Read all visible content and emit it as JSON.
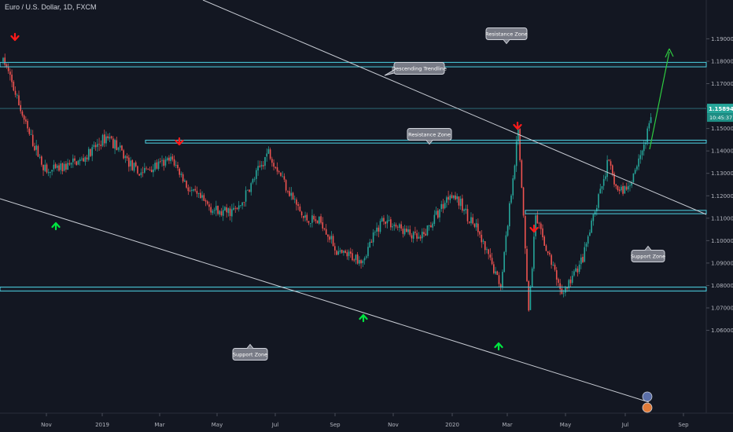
{
  "header": {
    "title": "Euro / U.S. Dollar, 1D, FXCM"
  },
  "colors": {
    "background": "#131722",
    "up": "#26a69a",
    "down": "#ef5350",
    "zone": "#4dd0e1",
    "trendline": "#c8ccd4",
    "axis_text": "#b2b5be",
    "price_badge": "#26a69a",
    "arrow_down": "#ff1a1a",
    "arrow_up": "#00e640",
    "projection": "#2ecc40",
    "callout_bg": "#787b86",
    "callout_border": "#d1d4dc"
  },
  "price_axis": {
    "ticks": [
      "1.19000",
      "1.18000",
      "1.17000",
      "1.16000",
      "1.15000",
      "1.14000",
      "1.13000",
      "1.12000",
      "1.11000",
      "1.10000",
      "1.09000",
      "1.08000",
      "1.07000",
      "1.06000"
    ],
    "current_price": "1.15894",
    "countdown": "10:45:37"
  },
  "time_axis": {
    "ticks": [
      "Nov",
      "2019",
      "Mar",
      "May",
      "Jul",
      "Sep",
      "Nov",
      "2020",
      "Mar",
      "May",
      "Jul",
      "Sep"
    ]
  },
  "callouts": {
    "resistance_top": "Resistance Zone",
    "descending_trendline": "Descending Trendline",
    "resistance_mid": "Resistance Zone",
    "support_mid": "Support Zone",
    "support_bottom": "Support Zone"
  },
  "chart_data": {
    "type": "candlestick",
    "title": "Euro / U.S. Dollar, 1D, FXCM",
    "y_range": [
      1.055,
      1.197
    ],
    "zones": [
      {
        "label": "Resistance Zone",
        "low": 1.1775,
        "high": 1.1795
      },
      {
        "label": "Resistance Zone",
        "low": 1.1435,
        "high": 1.1448
      },
      {
        "label": "Support Zone",
        "low": 1.112,
        "high": 1.1135
      },
      {
        "label": "Support Zone",
        "low": 1.0775,
        "high": 1.0793
      }
    ],
    "last_price": 1.15894,
    "path_dates": [
      "2018-09-25",
      "2018-10-20",
      "2018-11-08",
      "2018-12-15",
      "2019-01-10",
      "2019-02-10",
      "2019-03-18",
      "2019-04-05",
      "2019-05-05",
      "2019-05-25",
      "2019-06-25",
      "2019-07-31",
      "2019-08-20",
      "2019-09-05",
      "2019-10-01",
      "2019-10-21",
      "2019-11-29",
      "2019-12-31",
      "2020-01-25",
      "2020-02-20",
      "2020-03-09",
      "2020-03-15",
      "2020-03-20",
      "2020-03-27",
      "2020-04-24",
      "2020-05-15",
      "2020-06-10",
      "2020-06-20",
      "2020-07-01",
      "2020-07-20",
      "2020-07-26"
    ],
    "path_prices": [
      1.18,
      1.148,
      1.13,
      1.136,
      1.147,
      1.13,
      1.136,
      1.122,
      1.112,
      1.114,
      1.14,
      1.11,
      1.108,
      1.094,
      1.092,
      1.11,
      1.1,
      1.122,
      1.106,
      1.08,
      1.149,
      1.11,
      1.068,
      1.11,
      1.076,
      1.092,
      1.135,
      1.122,
      1.124,
      1.146,
      1.16
    ]
  }
}
